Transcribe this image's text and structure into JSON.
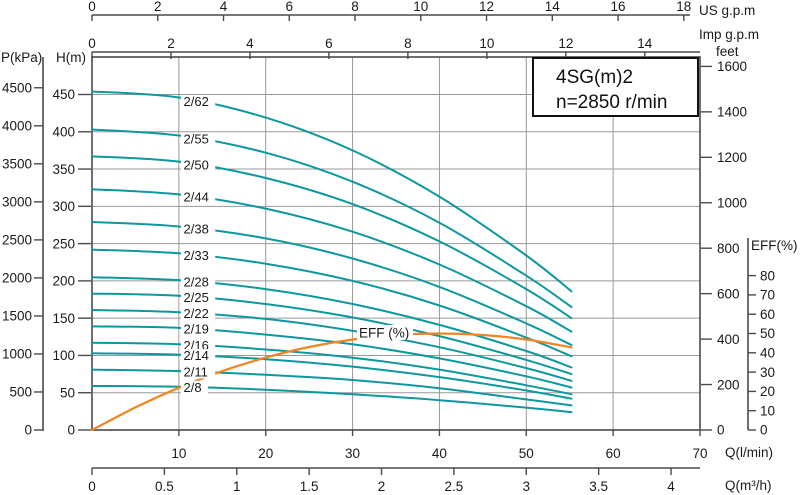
{
  "title": {
    "model": "4SG(m)2",
    "speed": "n=2850 r/min"
  },
  "annotation": {
    "eff_label": "EFF (%)"
  },
  "axis_titles": {
    "us_gpm": "US g.p.m",
    "imp_gpm": "Imp g.p.m",
    "feet": "feet",
    "p_kpa": "P(kPa)",
    "h_m": "H(m)",
    "eff_pct": "EFF(%)",
    "q_lmin": "Q(l/min)",
    "q_m3h": "Q(m³/h)"
  },
  "axes": {
    "us_gpm": {
      "ticks": [
        0,
        2,
        4,
        6,
        8,
        10,
        12,
        14,
        16,
        18
      ]
    },
    "imp_gpm": {
      "ticks": [
        0,
        2,
        4,
        6,
        8,
        10,
        12,
        14
      ]
    },
    "p_kpa": {
      "ticks": [
        4500,
        4000,
        3500,
        3000,
        2500,
        2000,
        1500,
        1000,
        500,
        0
      ]
    },
    "h_m": {
      "ticks": [
        450,
        400,
        350,
        300,
        250,
        200,
        150,
        100,
        50,
        0
      ]
    },
    "feet": {
      "ticks": [
        1600,
        1400,
        1200,
        1000,
        800,
        600,
        400,
        200,
        0
      ]
    },
    "eff_pct": {
      "ticks": [
        80,
        70,
        60,
        50,
        40,
        30,
        20,
        10,
        0
      ]
    },
    "q_lmin": {
      "ticks": [
        10,
        20,
        30,
        40,
        50,
        60,
        70
      ]
    },
    "q_m3h": {
      "ticks": [
        0,
        0.5,
        1,
        1.5,
        2,
        2.5,
        3,
        3.5,
        4
      ]
    }
  },
  "colors": {
    "curve": "#0d989e",
    "eff_curve": "#f08522",
    "grid": "#999999",
    "axis": "#4a4a4a",
    "text": "#1a1a1a",
    "box_border": "#111111"
  },
  "chart_data": {
    "type": "line",
    "title": "4SG(m)2 n=2850 r/min",
    "xlabel": "Q(l/min)",
    "ylabel": "H(m)",
    "xlim": [
      0,
      70
    ],
    "ylim": [
      0,
      470
    ],
    "grid": true,
    "legend_position": "labels-on-curves",
    "x": [
      0,
      10,
      20,
      30,
      40,
      50,
      55.2
    ],
    "series": [
      {
        "name": "2/62",
        "values": [
          454,
          446,
          419,
          375,
          313,
          234,
          186
        ]
      },
      {
        "name": "2/55",
        "values": [
          403,
          395,
          372,
          333,
          278,
          207,
          165
        ]
      },
      {
        "name": "2/50",
        "values": [
          367,
          360,
          338,
          303,
          253,
          189,
          150
        ]
      },
      {
        "name": "2/44",
        "values": [
          323,
          316,
          297,
          266,
          222,
          166,
          132
        ]
      },
      {
        "name": "2/38",
        "values": [
          279,
          273,
          257,
          230,
          192,
          143,
          114
        ]
      },
      {
        "name": "2/33",
        "values": [
          242,
          237,
          223,
          200,
          167,
          124,
          99
        ]
      },
      {
        "name": "2/28",
        "values": [
          205,
          201,
          189,
          169,
          141,
          106,
          84
        ]
      },
      {
        "name": "2/25",
        "values": [
          183,
          180,
          169,
          151,
          126,
          94,
          75
        ]
      },
      {
        "name": "2/22",
        "values": [
          161,
          158,
          149,
          133,
          111,
          83,
          66
        ]
      },
      {
        "name": "2/19",
        "values": [
          139,
          137,
          128,
          115,
          96,
          72,
          57
        ]
      },
      {
        "name": "2/16",
        "values": [
          117,
          115,
          108,
          97,
          81,
          60,
          48
        ]
      },
      {
        "name": "2/14",
        "values": [
          103,
          101,
          95,
          85,
          71,
          53,
          42
        ]
      },
      {
        "name": "2/11",
        "values": [
          81,
          79,
          74,
          67,
          56,
          41,
          33
        ]
      },
      {
        "name": "2/8",
        "values": [
          59,
          58,
          54,
          48,
          40,
          30,
          24
        ]
      }
    ],
    "efficiency_series": {
      "name": "EFF (%)",
      "ylabel": "EFF(%)",
      "ylim": [
        0,
        80
      ],
      "x": [
        0,
        5,
        10,
        15,
        20,
        25,
        30,
        35,
        40,
        45,
        50,
        55.2
      ],
      "values": [
        0,
        11.7,
        21.9,
        30.5,
        37.5,
        43,
        46.9,
        49.2,
        50,
        49.2,
        46.9,
        42.8
      ]
    }
  }
}
